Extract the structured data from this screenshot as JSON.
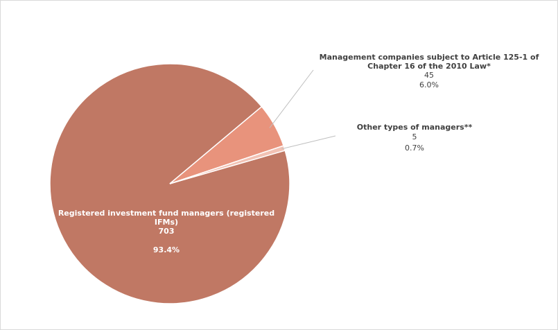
{
  "chart_data": {
    "type": "pie",
    "title": "",
    "slices": [
      {
        "label": "Registered investment fund managers (registered IFMs)",
        "label_lines": [
          "Registered investment fund managers (registered",
          "IFMs)"
        ],
        "count": "703",
        "percent_text": "93.4%",
        "value": 703,
        "percent": 93.4,
        "color": "#c07864"
      },
      {
        "label": "Management companies subject to Article 125-1 of Chapter 16 of the 2010 Law*",
        "label_lines": [
          "Management companies subject to Article 125-1 of",
          "Chapter 16 of the 2010 Law*"
        ],
        "count": "45",
        "percent_text": "6.0%",
        "value": 45,
        "percent": 6.0,
        "color": "#e8937c"
      },
      {
        "label": "Other types of managers**",
        "label_lines": [
          "Other types of managers**"
        ],
        "count": "5",
        "percent_text": "0.7%",
        "value": 5,
        "percent": 0.7,
        "color": "#f2c2b4"
      }
    ],
    "legend": "none",
    "leader_line_color": "#bfbfbf",
    "label_text_color": "#404040",
    "inner_label_color": "#ffffff"
  }
}
